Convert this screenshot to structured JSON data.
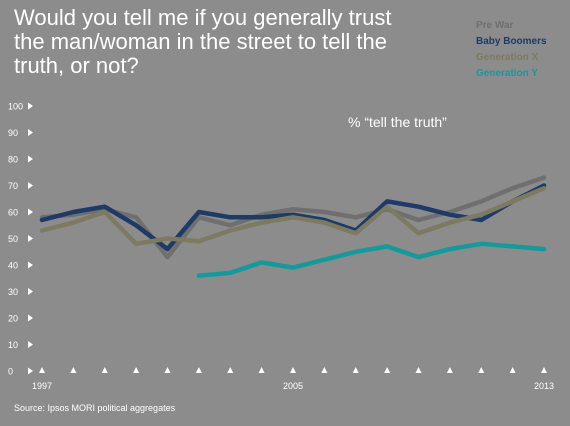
{
  "colors": {
    "background": "#8c8c8c",
    "pre_war": "#6f6f6f",
    "baby_boomers": "#1e3a66",
    "generation_x": "#7c7a60",
    "generation_y": "#149a9a",
    "text": "#ffffff"
  },
  "chart_data": {
    "type": "line",
    "title": "Would you tell me if you generally trust\nthe man/woman in the street to tell the\ntruth, or not?",
    "subtitle": "% “tell the truth”",
    "source": "Source: Ipsos MORI political aggregates",
    "x": [
      1997,
      1998,
      1999,
      2000,
      2001,
      2002,
      2003,
      2004,
      2005,
      2006,
      2007,
      2008,
      2009,
      2010,
      2011,
      2012,
      2013
    ],
    "x_tick_labels": [
      "1997",
      "2005",
      "2013"
    ],
    "x_tick_label_years": [
      1997,
      2005,
      2013
    ],
    "ylim": [
      0,
      100
    ],
    "y_ticks": [
      0,
      10,
      20,
      30,
      40,
      50,
      60,
      70,
      80,
      90,
      100
    ],
    "grid": false,
    "legend_position": "top-right",
    "series": [
      {
        "name": "Pre War",
        "color": "#6f6f6f",
        "values": [
          58,
          59,
          61,
          58,
          43,
          58,
          55,
          59,
          61,
          60,
          58,
          61,
          57,
          60,
          64,
          69,
          73
        ]
      },
      {
        "name": "Baby Boomers",
        "color": "#1e3a66",
        "values": [
          57,
          60,
          62,
          55,
          46,
          60,
          58,
          58,
          59,
          57,
          53,
          64,
          62,
          59,
          57,
          64,
          70
        ]
      },
      {
        "name": "Generation X",
        "color": "#7c7a60",
        "values": [
          53,
          56,
          60,
          48,
          50,
          49,
          53,
          56,
          58,
          56,
          52,
          62,
          52,
          56,
          59,
          64,
          69
        ]
      },
      {
        "name": "Generation Y",
        "color": "#149a9a",
        "values": [
          null,
          null,
          null,
          null,
          null,
          36,
          37,
          41,
          39,
          42,
          45,
          47,
          43,
          46,
          48,
          47,
          46
        ]
      }
    ]
  }
}
